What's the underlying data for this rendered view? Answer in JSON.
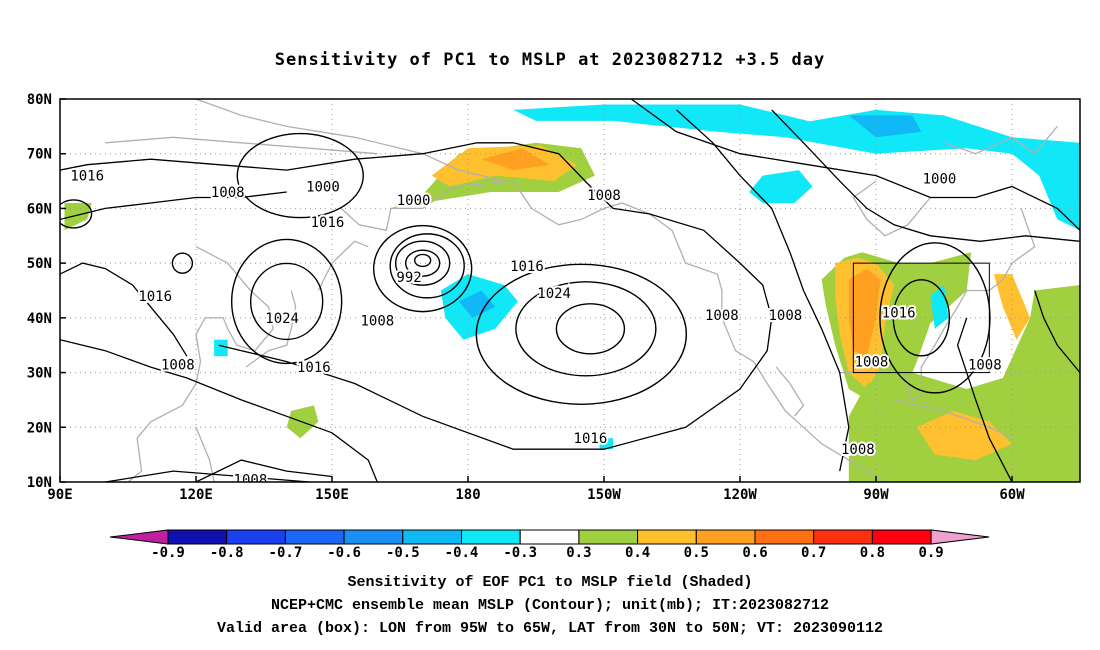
{
  "title": "Sensitivity of PC1 to MSLP at 2023082712 +3.5 day",
  "axes": {
    "lat_labels": [
      "80N",
      "70N",
      "60N",
      "50N",
      "40N",
      "30N",
      "20N",
      "10N"
    ],
    "lat_values": [
      80,
      70,
      60,
      50,
      40,
      30,
      20,
      10
    ],
    "lon_labels": [
      "90E",
      "120E",
      "150E",
      "180",
      "150W",
      "120W",
      "90W",
      "60W"
    ],
    "lon_values": [
      90,
      120,
      150,
      180,
      210,
      240,
      270,
      300
    ],
    "lon_range": [
      90,
      315
    ],
    "lat_range": [
      10,
      80
    ]
  },
  "colorbar": {
    "labels": [
      "-0.9",
      "-0.8",
      "-0.7",
      "-0.6",
      "-0.5",
      "-0.4",
      "-0.3",
      "0.3",
      "0.4",
      "0.5",
      "0.6",
      "0.7",
      "0.8",
      "0.9"
    ],
    "colors": [
      "#1010b0",
      "#1a40f0",
      "#1a68f5",
      "#1a90f5",
      "#10b8f5",
      "#10e8f8",
      "#ffffff",
      "#a0d040",
      "#ffc030",
      "#ffa020",
      "#ff7010",
      "#ff3010",
      "#ff0010"
    ],
    "low_arrow_color": "#c020a0",
    "high_arrow_color": "#f0a0d0"
  },
  "contour_labels": [
    {
      "text": "1016",
      "lon": 96,
      "lat": 66
    },
    {
      "text": "1008",
      "lon": 127,
      "lat": 63
    },
    {
      "text": "1000",
      "lon": 148,
      "lat": 64
    },
    {
      "text": "1016",
      "lon": 149,
      "lat": 57.5
    },
    {
      "text": "1000",
      "lon": 168,
      "lat": 61.5
    },
    {
      "text": "1016",
      "lon": 111,
      "lat": 44
    },
    {
      "text": "1024",
      "lon": 139,
      "lat": 40
    },
    {
      "text": "992",
      "lon": 167,
      "lat": 47.5
    },
    {
      "text": "1008",
      "lon": 160,
      "lat": 39.5
    },
    {
      "text": "1016",
      "lon": 193,
      "lat": 49.5
    },
    {
      "text": "1024",
      "lon": 199,
      "lat": 44.5
    },
    {
      "text": "1008",
      "lon": 210,
      "lat": 62.5
    },
    {
      "text": "1008",
      "lon": 116,
      "lat": 31.5
    },
    {
      "text": "1016",
      "lon": 146,
      "lat": 31
    },
    {
      "text": "1016",
      "lon": 207,
      "lat": 18
    },
    {
      "text": "1008",
      "lon": 236,
      "lat": 40.5
    },
    {
      "text": "1008",
      "lon": 250,
      "lat": 40.5
    },
    {
      "text": "1008",
      "lon": 266,
      "lat": 16
    },
    {
      "text": "1016",
      "lon": 275,
      "lat": 41
    },
    {
      "text": "1008",
      "lon": 269,
      "lat": 32
    },
    {
      "text": "1000",
      "lon": 284,
      "lat": 65.5
    },
    {
      "text": "1008",
      "lon": 294,
      "lat": 31.5
    },
    {
      "text": "1008",
      "lon": 132,
      "lat": 10.5
    }
  ],
  "valid_box": {
    "lon_min": 265,
    "lon_max": 295,
    "lat_min": 30,
    "lat_max": 50
  },
  "captions": {
    "line1": "Sensitivity of EOF PC1 to MSLP field (Shaded)",
    "line2": "NCEP+CMC ensemble mean MSLP (Contour); unit(mb); IT:2023082712",
    "line3": "Valid area (box): LON from 95W to 65W, LAT from 30N to 50N; VT: 2023090112"
  }
}
